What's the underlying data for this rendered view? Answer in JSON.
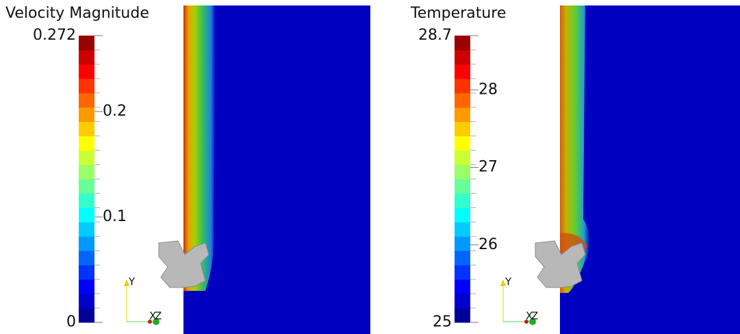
{
  "chart_data": [
    {
      "type": "colorbar",
      "title": "Velocity Magnitude",
      "ylim": [
        0,
        0.272
      ],
      "yticks": [
        0,
        0.1,
        0.2,
        0.272
      ]
    },
    {
      "type": "colorbar",
      "title": "Temperature",
      "ylim": [
        25,
        28.7
      ],
      "yticks": [
        25,
        26,
        27,
        28,
        28.7
      ]
    }
  ],
  "triad": [
    "Y",
    "X",
    "Z"
  ]
}
